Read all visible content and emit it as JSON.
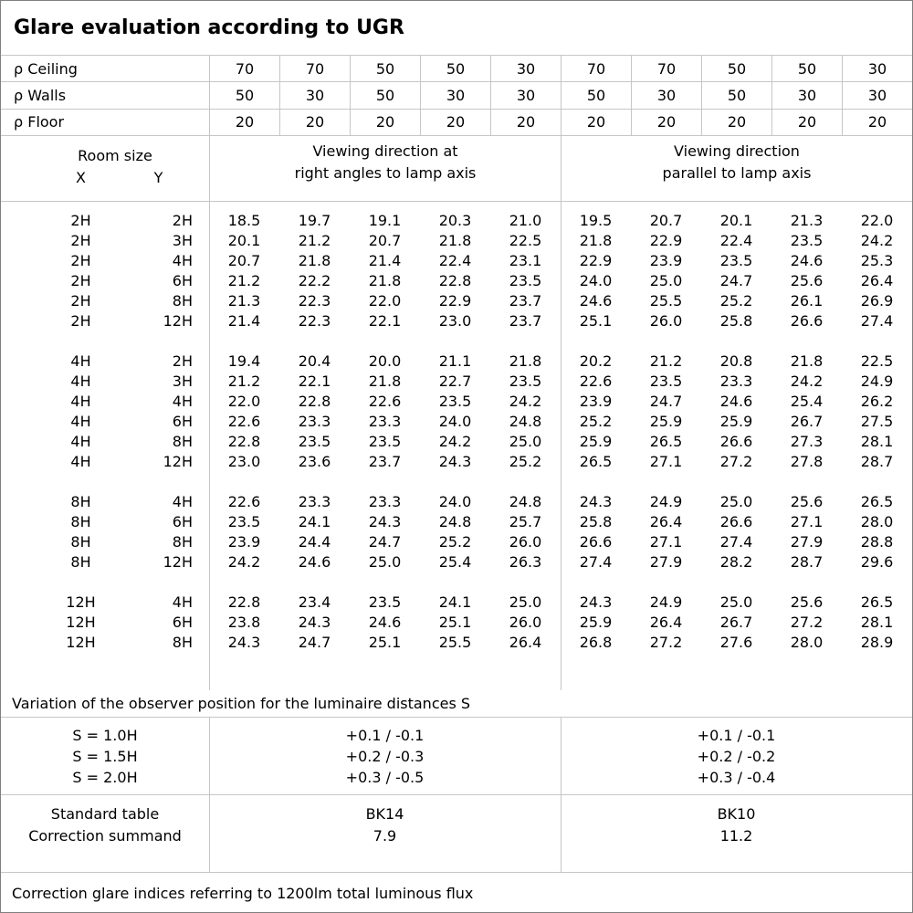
{
  "title": "Glare evaluation according to UGR",
  "reflectance_rows": [
    {
      "label": "ρ Ceiling",
      "values": [
        "70",
        "70",
        "50",
        "50",
        "30",
        "70",
        "70",
        "50",
        "50",
        "30"
      ]
    },
    {
      "label": "ρ Walls",
      "values": [
        "50",
        "30",
        "50",
        "30",
        "30",
        "50",
        "30",
        "50",
        "30",
        "30"
      ]
    },
    {
      "label": "ρ Floor",
      "values": [
        "20",
        "20",
        "20",
        "20",
        "20",
        "20",
        "20",
        "20",
        "20",
        "20"
      ]
    }
  ],
  "column_header": {
    "room_size": "Room size",
    "x_label": "X",
    "y_label": "Y",
    "group_right_angles": "Viewing direction at\nright angles to lamp axis",
    "group_parallel": "Viewing direction\nparallel to lamp axis"
  },
  "ugr_blocks": [
    {
      "rows": [
        {
          "x": "2H",
          "y": "2H",
          "values": [
            "18.5",
            "19.7",
            "19.1",
            "20.3",
            "21.0",
            "19.5",
            "20.7",
            "20.1",
            "21.3",
            "22.0"
          ]
        },
        {
          "x": "2H",
          "y": "3H",
          "values": [
            "20.1",
            "21.2",
            "20.7",
            "21.8",
            "22.5",
            "21.8",
            "22.9",
            "22.4",
            "23.5",
            "24.2"
          ]
        },
        {
          "x": "2H",
          "y": "4H",
          "values": [
            "20.7",
            "21.8",
            "21.4",
            "22.4",
            "23.1",
            "22.9",
            "23.9",
            "23.5",
            "24.6",
            "25.3"
          ]
        },
        {
          "x": "2H",
          "y": "6H",
          "values": [
            "21.2",
            "22.2",
            "21.8",
            "22.8",
            "23.5",
            "24.0",
            "25.0",
            "24.7",
            "25.6",
            "26.4"
          ]
        },
        {
          "x": "2H",
          "y": "8H",
          "values": [
            "21.3",
            "22.3",
            "22.0",
            "22.9",
            "23.7",
            "24.6",
            "25.5",
            "25.2",
            "26.1",
            "26.9"
          ]
        },
        {
          "x": "2H",
          "y": "12H",
          "values": [
            "21.4",
            "22.3",
            "22.1",
            "23.0",
            "23.7",
            "25.1",
            "26.0",
            "25.8",
            "26.6",
            "27.4"
          ]
        }
      ]
    },
    {
      "rows": [
        {
          "x": "4H",
          "y": "2H",
          "values": [
            "19.4",
            "20.4",
            "20.0",
            "21.1",
            "21.8",
            "20.2",
            "21.2",
            "20.8",
            "21.8",
            "22.5"
          ]
        },
        {
          "x": "4H",
          "y": "3H",
          "values": [
            "21.2",
            "22.1",
            "21.8",
            "22.7",
            "23.5",
            "22.6",
            "23.5",
            "23.3",
            "24.2",
            "24.9"
          ]
        },
        {
          "x": "4H",
          "y": "4H",
          "values": [
            "22.0",
            "22.8",
            "22.6",
            "23.5",
            "24.2",
            "23.9",
            "24.7",
            "24.6",
            "25.4",
            "26.2"
          ]
        },
        {
          "x": "4H",
          "y": "6H",
          "values": [
            "22.6",
            "23.3",
            "23.3",
            "24.0",
            "24.8",
            "25.2",
            "25.9",
            "25.9",
            "26.7",
            "27.5"
          ]
        },
        {
          "x": "4H",
          "y": "8H",
          "values": [
            "22.8",
            "23.5",
            "23.5",
            "24.2",
            "25.0",
            "25.9",
            "26.5",
            "26.6",
            "27.3",
            "28.1"
          ]
        },
        {
          "x": "4H",
          "y": "12H",
          "values": [
            "23.0",
            "23.6",
            "23.7",
            "24.3",
            "25.2",
            "26.5",
            "27.1",
            "27.2",
            "27.8",
            "28.7"
          ]
        }
      ]
    },
    {
      "rows": [
        {
          "x": "8H",
          "y": "4H",
          "values": [
            "22.6",
            "23.3",
            "23.3",
            "24.0",
            "24.8",
            "24.3",
            "24.9",
            "25.0",
            "25.6",
            "26.5"
          ]
        },
        {
          "x": "8H",
          "y": "6H",
          "values": [
            "23.5",
            "24.1",
            "24.3",
            "24.8",
            "25.7",
            "25.8",
            "26.4",
            "26.6",
            "27.1",
            "28.0"
          ]
        },
        {
          "x": "8H",
          "y": "8H",
          "values": [
            "23.9",
            "24.4",
            "24.7",
            "25.2",
            "26.0",
            "26.6",
            "27.1",
            "27.4",
            "27.9",
            "28.8"
          ]
        },
        {
          "x": "8H",
          "y": "12H",
          "values": [
            "24.2",
            "24.6",
            "25.0",
            "25.4",
            "26.3",
            "27.4",
            "27.9",
            "28.2",
            "28.7",
            "29.6"
          ]
        }
      ]
    },
    {
      "rows": [
        {
          "x": "12H",
          "y": "4H",
          "values": [
            "22.8",
            "23.4",
            "23.5",
            "24.1",
            "25.0",
            "24.3",
            "24.9",
            "25.0",
            "25.6",
            "26.5"
          ]
        },
        {
          "x": "12H",
          "y": "6H",
          "values": [
            "23.8",
            "24.3",
            "24.6",
            "25.1",
            "26.0",
            "25.9",
            "26.4",
            "26.7",
            "27.2",
            "28.1"
          ]
        },
        {
          "x": "12H",
          "y": "8H",
          "values": [
            "24.3",
            "24.7",
            "25.1",
            "25.5",
            "26.4",
            "26.8",
            "27.2",
            "27.6",
            "28.0",
            "28.9"
          ]
        }
      ]
    }
  ],
  "variation": {
    "note": "Variation of the observer position for the luminaire distances S",
    "rows": [
      {
        "label": "S = 1.0H",
        "right_angles": "+0.1 / -0.1",
        "parallel": "+0.1 / -0.1"
      },
      {
        "label": "S = 1.5H",
        "right_angles": "+0.2 / -0.3",
        "parallel": "+0.2 / -0.2"
      },
      {
        "label": "S = 2.0H",
        "right_angles": "+0.3 / -0.5",
        "parallel": "+0.3 / -0.4"
      }
    ]
  },
  "standard": {
    "rows": [
      {
        "label": "Standard table",
        "right_angles": "BK14",
        "parallel": "BK10"
      },
      {
        "label": "Correction summand",
        "right_angles": "7.9",
        "parallel": "11.2"
      }
    ]
  },
  "footer": "Correction glare indices referring to 1200lm total luminous flux",
  "colors": {
    "background": "#ffffff",
    "text": "#000000",
    "grid_line": "#c6c6c6",
    "frame": "#808080"
  }
}
